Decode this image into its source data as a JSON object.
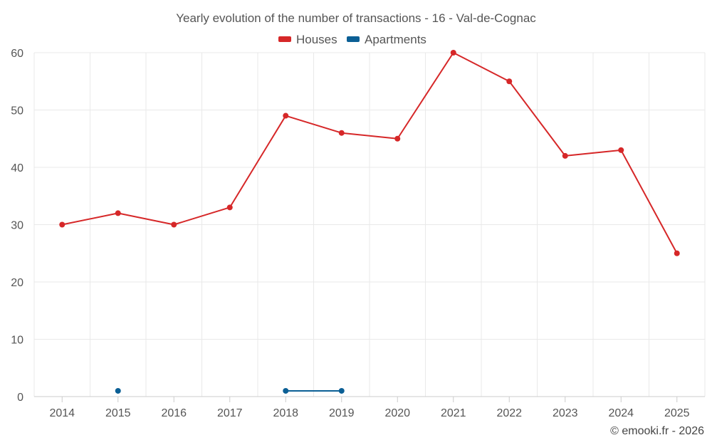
{
  "chart_data": {
    "type": "line",
    "title": "Yearly evolution of the number of transactions - 16 - Val-de-Cognac",
    "categories": [
      "2014",
      "2015",
      "2016",
      "2017",
      "2018",
      "2019",
      "2020",
      "2021",
      "2022",
      "2023",
      "2024",
      "2025"
    ],
    "series": [
      {
        "name": "Houses",
        "color": "#d62728",
        "values": [
          30,
          32,
          30,
          33,
          49,
          46,
          45,
          60,
          55,
          42,
          43,
          25
        ]
      },
      {
        "name": "Apartments",
        "color": "#0b5f95",
        "values": [
          null,
          1,
          null,
          null,
          1,
          1,
          null,
          null,
          null,
          null,
          null,
          null
        ]
      }
    ],
    "ylim": [
      0,
      60
    ],
    "yticks": [
      "0",
      "10",
      "20",
      "30",
      "40",
      "50",
      "60"
    ],
    "xlabel": "",
    "ylabel": "",
    "grid": true,
    "legend_position": "top-center"
  },
  "credit": "© emooki.fr - 2026"
}
